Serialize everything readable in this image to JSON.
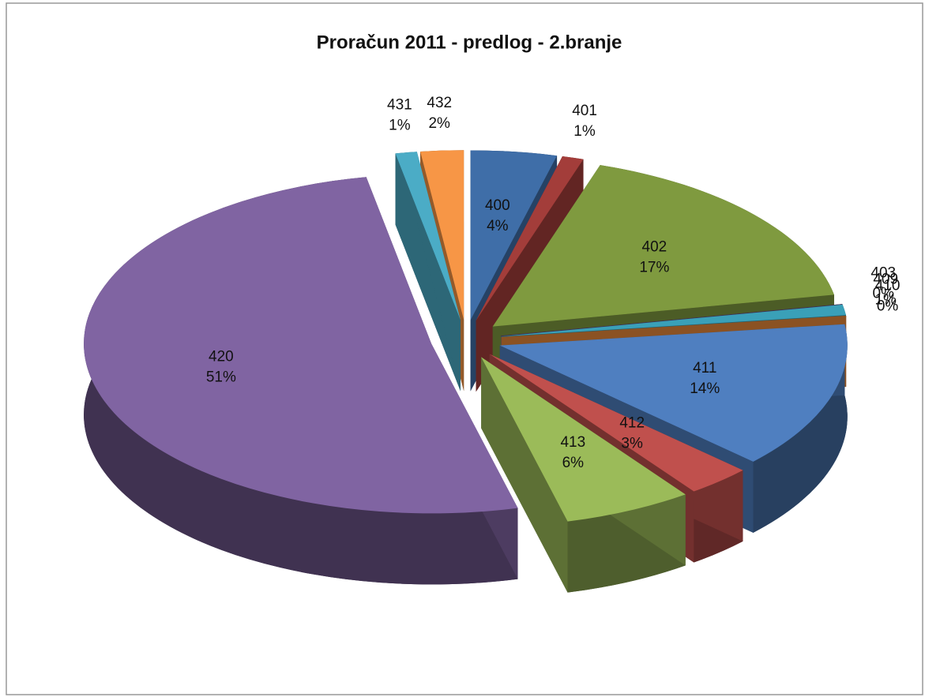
{
  "chart_data": {
    "type": "pie",
    "title": "Proračun 2011 - predlog - 2.branje",
    "categories": [
      "400",
      "401",
      "402",
      "403",
      "409",
      "410",
      "411",
      "412",
      "413",
      "420",
      "431",
      "432"
    ],
    "values": [
      4,
      1,
      17,
      0,
      1,
      0,
      14,
      3,
      6,
      51,
      1,
      2
    ],
    "value_labels": [
      "4%",
      "1%",
      "17%",
      "0%",
      "1%",
      "0%",
      "14%",
      "3%",
      "6%",
      "51%",
      "1%",
      "2%"
    ],
    "colors": [
      "#3f6ea8",
      "#a33d3a",
      "#7f9a3f",
      "#6a4f8a",
      "#3aa0b8",
      "#e8893a",
      "#4f7fc0",
      "#c0504d",
      "#9bbb59",
      "#8064a2",
      "#4bacc6",
      "#f79646"
    ]
  }
}
